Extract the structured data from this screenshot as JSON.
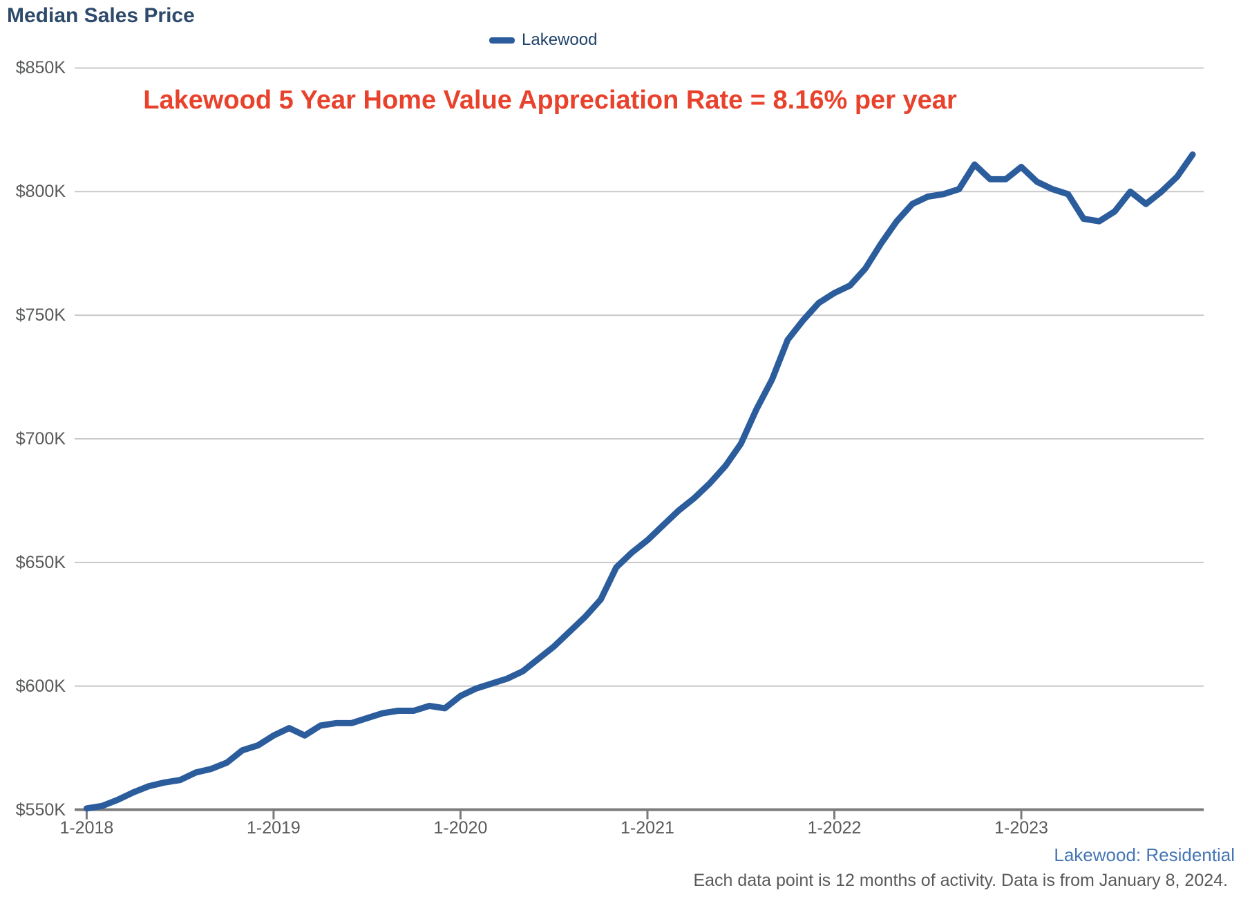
{
  "title": "Median Sales Price",
  "legend": {
    "label": "Lakewood"
  },
  "annotation": "Lakewood 5 Year Home Value Appreciation Rate = 8.16% per year",
  "footer": {
    "link": "Lakewood: Residential",
    "note": "Each data point is 12 months of activity. Data is from January 8, 2024."
  },
  "colors": {
    "line": "#2b5c9c",
    "title_text": "#2e4a6b",
    "legend_text": "#1f4269",
    "annotation_text": "#e8422c",
    "tick_text": "#58595b",
    "grid_line": "#c9c9c9",
    "axis_line": "#7a7a7a",
    "footer_link": "#4576b4",
    "footer_note": "#595959"
  },
  "chart_data": {
    "type": "line",
    "title": "Median Sales Price",
    "series_name": "Lakewood",
    "legend_position": "top-center",
    "grid": "horizontal",
    "ylim_usd": [
      550000,
      850000
    ],
    "y_tick_labels": [
      "$850K",
      "$800K",
      "$750K",
      "$700K",
      "$650K",
      "$600K",
      "$550K"
    ],
    "y_tick_values_k": [
      850,
      800,
      750,
      700,
      650,
      600,
      550
    ],
    "x_tick_labels": [
      "1-2018",
      "1-2019",
      "1-2020",
      "1-2021",
      "1-2022",
      "1-2023"
    ],
    "x_tick_month_indices": [
      0,
      12,
      24,
      36,
      48,
      60
    ],
    "x": [
      "1-2018",
      "2-2018",
      "3-2018",
      "4-2018",
      "5-2018",
      "6-2018",
      "7-2018",
      "8-2018",
      "9-2018",
      "10-2018",
      "11-2018",
      "12-2018",
      "1-2019",
      "2-2019",
      "3-2019",
      "4-2019",
      "5-2019",
      "6-2019",
      "7-2019",
      "8-2019",
      "9-2019",
      "10-2019",
      "11-2019",
      "12-2019",
      "1-2020",
      "2-2020",
      "3-2020",
      "4-2020",
      "5-2020",
      "6-2020",
      "7-2020",
      "8-2020",
      "9-2020",
      "10-2020",
      "11-2020",
      "12-2020",
      "1-2021",
      "2-2021",
      "3-2021",
      "4-2021",
      "5-2021",
      "6-2021",
      "7-2021",
      "8-2021",
      "9-2021",
      "10-2021",
      "11-2021",
      "12-2021",
      "1-2022",
      "2-2022",
      "3-2022",
      "4-2022",
      "5-2022",
      "6-2022",
      "7-2022",
      "8-2022",
      "9-2022",
      "10-2022",
      "11-2022",
      "12-2022",
      "1-2023",
      "2-2023",
      "3-2023",
      "4-2023",
      "5-2023",
      "6-2023",
      "7-2023",
      "8-2023",
      "9-2023",
      "10-2023",
      "11-2023",
      "12-2023"
    ],
    "values_k_usd": [
      550.5,
      551.5,
      554,
      557,
      559.5,
      561,
      562,
      565,
      566.5,
      569,
      574,
      576,
      580,
      583,
      580,
      584,
      585,
      585,
      587,
      589,
      590,
      590,
      592,
      591,
      596,
      599,
      601,
      603,
      606,
      611,
      616,
      622,
      628,
      635,
      648,
      654,
      659,
      665,
      671,
      676,
      682,
      689,
      698,
      712,
      724,
      740,
      748,
      755,
      759,
      762,
      769,
      779,
      788,
      795,
      798,
      799,
      801,
      811,
      805,
      805,
      810,
      804,
      801,
      799,
      789,
      788,
      792,
      800,
      795,
      800,
      806,
      815
    ]
  }
}
